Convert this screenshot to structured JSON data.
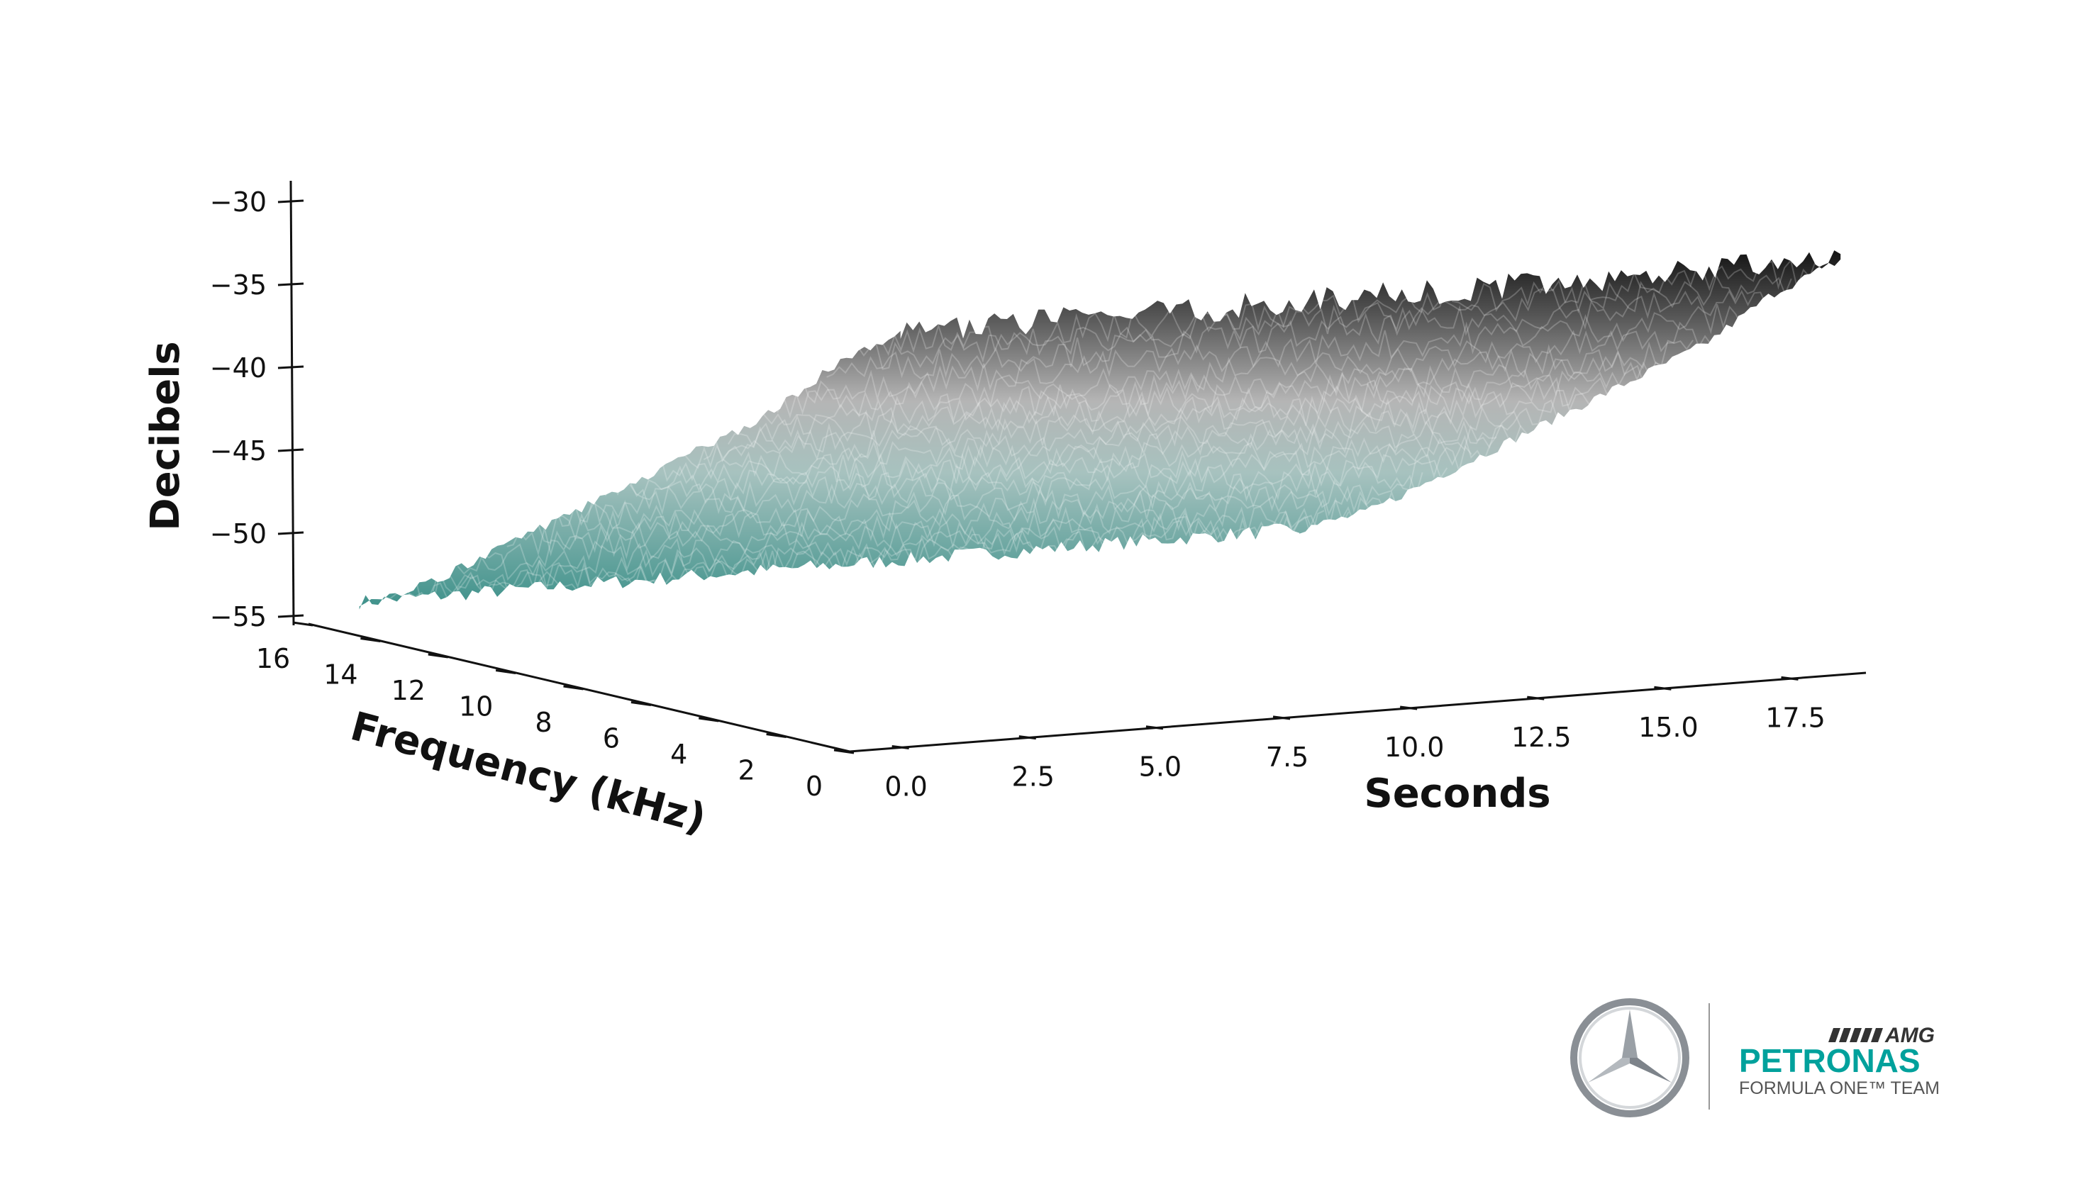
{
  "chart_data": {
    "type": "surface3d",
    "title": "",
    "xlabel": "Seconds",
    "ylabel": "Frequency (kHz)",
    "zlabel": "Decibels",
    "x_ticks": [
      "0.0",
      "2.5",
      "5.0",
      "7.5",
      "10.0",
      "12.5",
      "15.0",
      "17.5"
    ],
    "y_ticks": [
      "16",
      "14",
      "12",
      "10",
      "8",
      "6",
      "4",
      "2",
      "0"
    ],
    "z_ticks": [
      "−30",
      "−35",
      "−40",
      "−45",
      "−50",
      "−55"
    ],
    "xlim": [
      -1,
      19
    ],
    "ylim": [
      0,
      16
    ],
    "zlim": [
      -55,
      -30
    ],
    "frequency_kHz": [
      0,
      2,
      4,
      6,
      8,
      10,
      12,
      14,
      16
    ],
    "time_range_s": [
      0,
      18.5
    ],
    "decibels_by_frequency": [
      -30,
      -33,
      -37,
      -40,
      -43,
      -46,
      -49,
      -52,
      -54
    ],
    "colors": {
      "low": "#3d918a",
      "mid": "#b3b3b3",
      "high": "#141414"
    }
  },
  "logo": {
    "amg": "AMG",
    "petronas": "PETRONAS",
    "team": "FORMULA ONE™ TEAM"
  }
}
